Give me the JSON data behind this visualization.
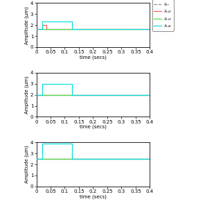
{
  "subplots": [
    {
      "ref_value": 1.65,
      "lines": [
        {
          "label": "$\\lambda_{ie2}$",
          "color": "#ff5555",
          "x_rise": 0.02,
          "x_fall": 0.035,
          "y_high": 2.0,
          "y_settled": 1.65
        },
        {
          "label": "$\\lambda_{ie3}$",
          "color": "#44dd44",
          "x_rise": 0.02,
          "x_fall": 0.05,
          "y_high": 1.65,
          "y_settled": 1.65
        },
        {
          "label": "$\\lambda_{ie4}$",
          "color": "#00dddd",
          "x_rise": 0.02,
          "x_fall": 0.125,
          "y_high": 2.3,
          "y_settled": 1.65
        }
      ],
      "ylim": [
        0,
        4
      ],
      "yticks": [
        0,
        1,
        2,
        3,
        4
      ],
      "show_legend": true
    },
    {
      "ref_value": 2.0,
      "lines": [
        {
          "label": "$\\lambda_{ie2}$",
          "color": "#ff5555",
          "x_rise": 0.02,
          "x_fall": 0.035,
          "y_high": 2.0,
          "y_settled": 2.0
        },
        {
          "label": "$\\lambda_{ie3}$",
          "color": "#44dd44",
          "x_rise": 0.02,
          "x_fall": 0.05,
          "y_high": 2.0,
          "y_settled": 2.0
        },
        {
          "label": "$\\lambda_{ie4}$",
          "color": "#00dddd",
          "x_rise": 0.02,
          "x_fall": 0.125,
          "y_high": 3.0,
          "y_settled": 2.0
        }
      ],
      "ylim": [
        0,
        4
      ],
      "yticks": [
        0,
        1,
        2,
        3,
        4
      ],
      "show_legend": false
    },
    {
      "ref_value": 2.5,
      "lines": [
        {
          "label": "$\\lambda_{ie2}$",
          "color": "#ff5555",
          "x_rise": 0.02,
          "x_fall": 0.035,
          "y_high": 2.5,
          "y_settled": 2.5
        },
        {
          "label": "$\\lambda_{ie3}$",
          "color": "#44dd44",
          "x_rise": 0.02,
          "x_fall": 0.05,
          "y_high": 2.5,
          "y_settled": 2.5
        },
        {
          "label": "$\\lambda_{ie4}$",
          "color": "#00dddd",
          "x_rise": 0.02,
          "x_fall": 0.125,
          "y_high": 3.9,
          "y_settled": 2.5
        }
      ],
      "ylim": [
        0,
        4
      ],
      "yticks": [
        0,
        1,
        2,
        3,
        4
      ],
      "show_legend": false
    }
  ],
  "xlim": [
    0,
    0.4
  ],
  "xticks": [
    0,
    0.05,
    0.1,
    0.15,
    0.2,
    0.25,
    0.3,
    0.35,
    0.4
  ],
  "xlabel": "time (secs)",
  "ylabel": "Amplitude (μm)",
  "ref_color": "#888888",
  "ref_linestyle": "--",
  "legend_labels": [
    "$\\lambda_{ir}$",
    "$\\lambda_{ie2}$",
    "$\\lambda_{ie3}$",
    "$\\lambda_{ie4}$"
  ],
  "legend_colors": [
    "#888888",
    "#ff5555",
    "#44dd44",
    "#00dddd"
  ],
  "legend_linestyles": [
    "--",
    "-",
    "-",
    "-"
  ]
}
